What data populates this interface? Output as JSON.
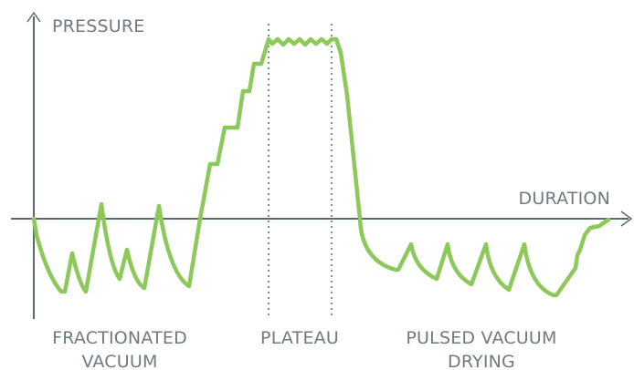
{
  "axes": {
    "y_label": "PRESSURE",
    "x_label": "DURATION"
  },
  "phases": {
    "fractionated": {
      "line1": "FRACTIONATED",
      "line2": "VACUUM"
    },
    "plateau": {
      "label": "PLATEAU"
    },
    "pulsed": {
      "line1": "PULSED VACUUM",
      "line2": "DRYING"
    }
  },
  "colors": {
    "curve": "#8dc85a",
    "axis": "#5b6a70",
    "text": "#707a7f"
  }
}
